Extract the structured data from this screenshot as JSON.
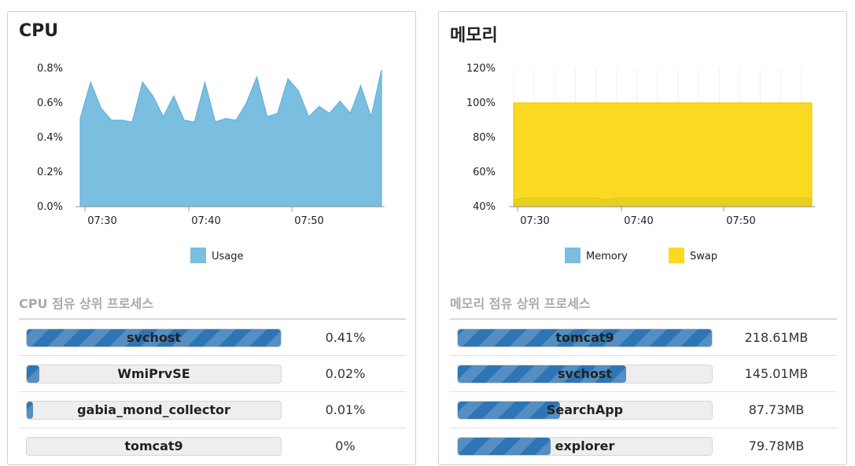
{
  "cpu_panel": {
    "title": "CPU",
    "section_title": "CPU 점유 상위 프로세스",
    "processes": [
      {
        "name": "svchost",
        "value": "0.41%",
        "fill": 1.0
      },
      {
        "name": "WmiPrvSE",
        "value": "0.02%",
        "fill": 0.05
      },
      {
        "name": "gabia_mond_collector",
        "value": "0.01%",
        "fill": 0.025
      },
      {
        "name": "tomcat9",
        "value": "0%",
        "fill": 0.0
      }
    ]
  },
  "mem_panel": {
    "title": "메모리",
    "section_title": "메모리 점유 상위 프로세스",
    "processes": [
      {
        "name": "tomcat9",
        "value": "218.61MB",
        "fill": 1.0
      },
      {
        "name": "svchost",
        "value": "145.01MB",
        "fill": 0.663
      },
      {
        "name": "SearchApp",
        "value": "87.73MB",
        "fill": 0.401
      },
      {
        "name": "explorer",
        "value": "79.78MB",
        "fill": 0.365
      }
    ]
  },
  "colors": {
    "usage": "#7bbfe0",
    "usage_line": "#64b0d8",
    "memory": "#7bbfe0",
    "swap": "#fad922",
    "swap_line": "#f0d000",
    "bar": "#2e75b6",
    "axis": "#9a9a9a"
  },
  "chart_data": [
    {
      "type": "area",
      "title": "",
      "xlabel": "",
      "ylabel": "",
      "x_ticks": [
        "07:30",
        "07:40",
        "07:50"
      ],
      "y_ticks": [
        "0.0%",
        "0.2%",
        "0.4%",
        "0.6%",
        "0.8%"
      ],
      "ylim": [
        0,
        0.8
      ],
      "x_minutes": [
        0,
        1,
        2,
        3,
        4,
        5,
        6,
        7,
        8,
        9,
        10,
        11,
        12,
        13,
        14,
        15,
        16,
        17,
        18,
        19,
        20,
        21,
        22,
        23,
        24,
        25,
        26,
        27,
        28,
        29
      ],
      "x_start_label": "07:29",
      "series": [
        {
          "name": "Usage",
          "values": [
            0.51,
            0.72,
            0.57,
            0.5,
            0.5,
            0.49,
            0.72,
            0.64,
            0.52,
            0.64,
            0.5,
            0.49,
            0.72,
            0.49,
            0.51,
            0.5,
            0.6,
            0.75,
            0.52,
            0.54,
            0.74,
            0.67,
            0.52,
            0.58,
            0.54,
            0.61,
            0.54,
            0.7,
            0.52,
            0.79
          ]
        }
      ],
      "legend_position": "bottom",
      "grid": false
    },
    {
      "type": "area",
      "title": "",
      "xlabel": "",
      "ylabel": "",
      "x_ticks": [
        "07:30",
        "07:40",
        "07:50"
      ],
      "y_ticks": [
        "40%",
        "60%",
        "80%",
        "100%",
        "120%"
      ],
      "ylim": [
        40,
        120
      ],
      "series": [
        {
          "name": "Memory",
          "values": [
            44,
            45,
            45,
            45,
            45,
            45,
            45,
            45,
            45,
            44,
            45,
            45,
            45,
            45,
            45,
            45,
            45,
            45,
            45,
            45,
            45,
            45,
            45,
            45,
            45,
            45,
            45,
            45,
            45,
            45
          ]
        },
        {
          "name": "Swap",
          "values": [
            100,
            100,
            100,
            100,
            100,
            100,
            100,
            100,
            100,
            100,
            100,
            100,
            100,
            100,
            100,
            100,
            100,
            100,
            100,
            100,
            100,
            100,
            100,
            100,
            100,
            100,
            100,
            100,
            100,
            100
          ]
        }
      ],
      "legend_position": "bottom",
      "grid": true
    }
  ]
}
